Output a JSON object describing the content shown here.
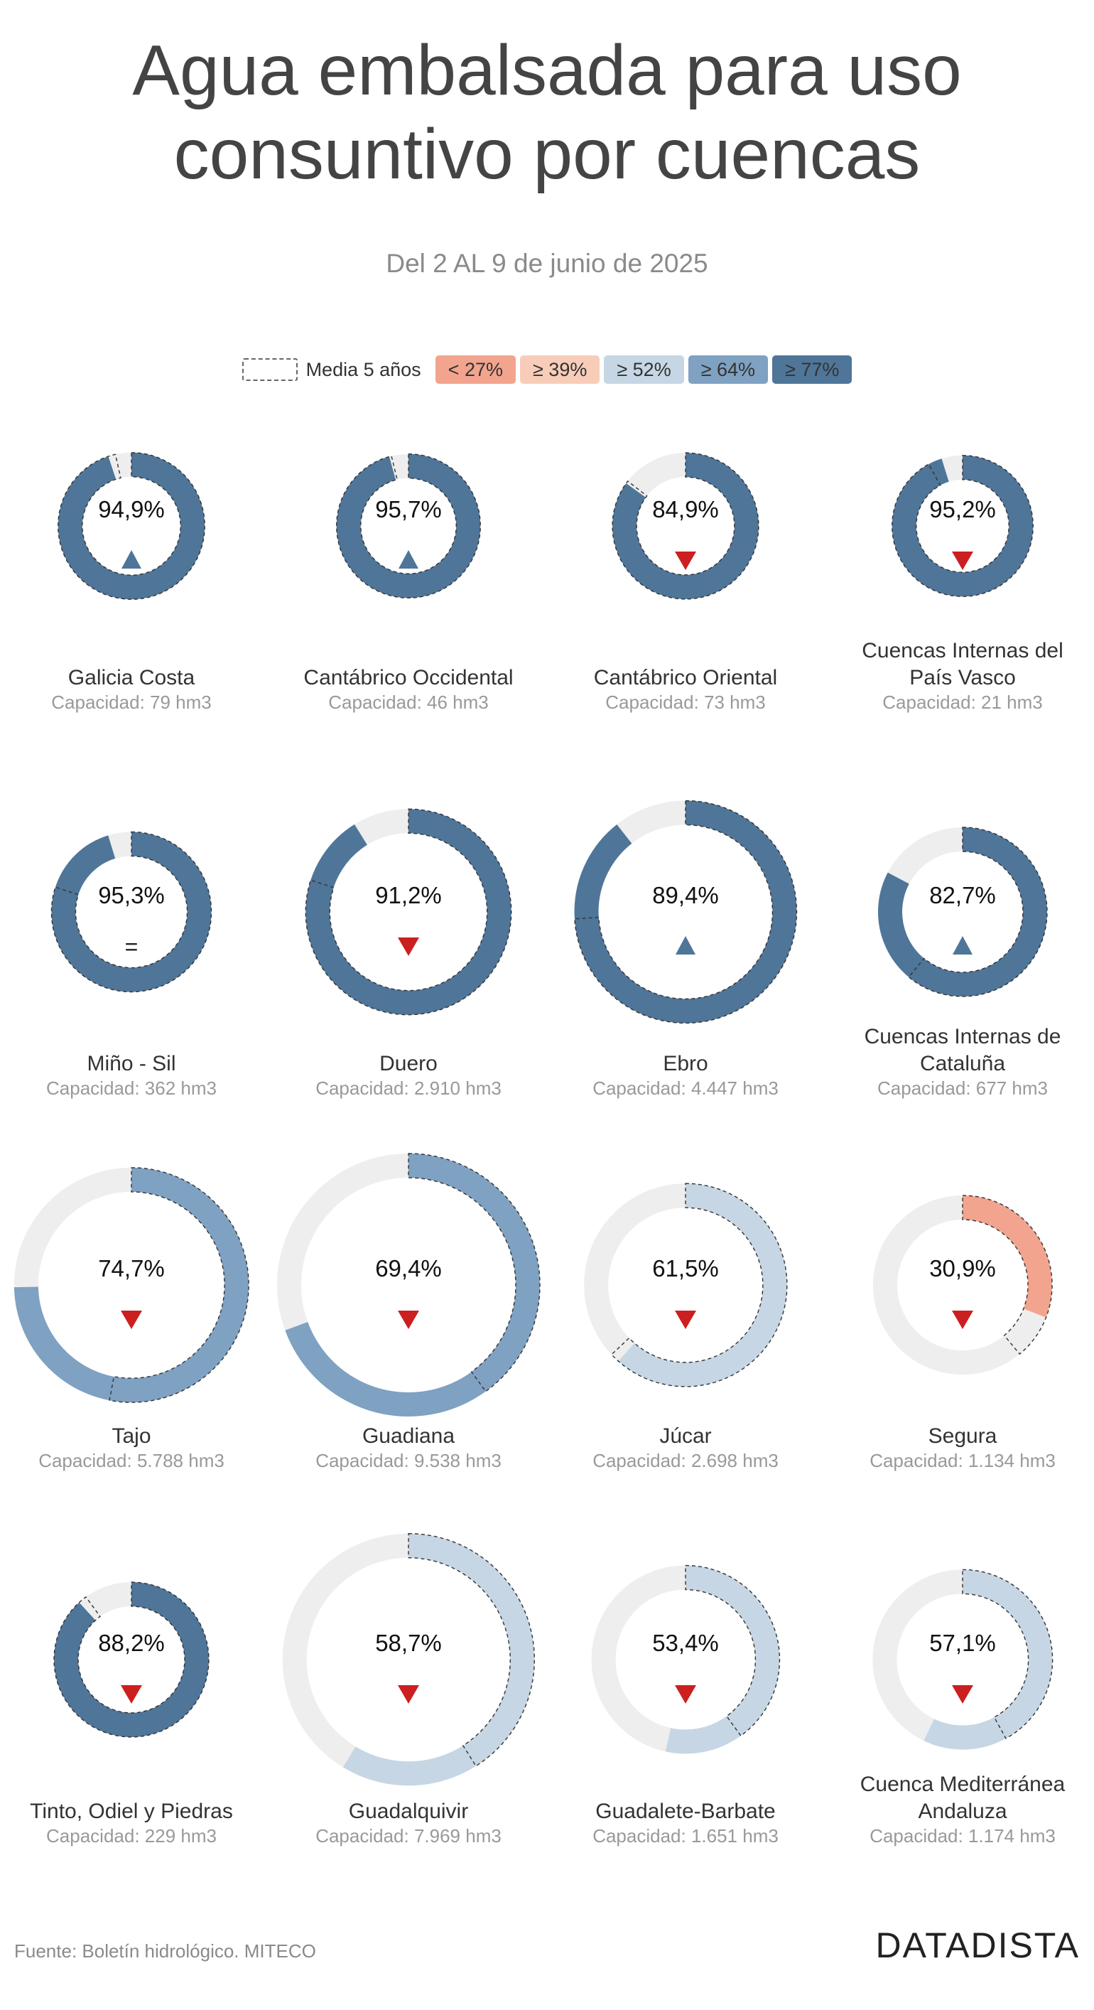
{
  "header": {
    "title_line1": "Agua embalsada para uso",
    "title_line2": "consuntivo por cuencas",
    "subtitle": "Del 2 AL 9 de junio de 2025"
  },
  "legend": {
    "media_label": "Media 5 años",
    "items": [
      {
        "label": "< 27%",
        "color": "#f2a48f"
      },
      {
        "label": "≥ 39%",
        "color": "#f7cdb9"
      },
      {
        "label": "≥ 52%",
        "color": "#c6d6e4"
      },
      {
        "label": "≥ 64%",
        "color": "#7fa1c2"
      },
      {
        "label": "≥ 77%",
        "color": "#4f7599"
      }
    ]
  },
  "footer": {
    "source": "Fuente: Boletín hidrológico. MITECO",
    "logo": "DATADISTA"
  },
  "colors": {
    "track": "#eeeeee",
    "up_arrow": "#4f7599",
    "down_arrow": "#cc1f1f"
  },
  "chart_data": {
    "type": "donut",
    "title": "Agua embalsada para uso consuntivo por cuencas",
    "subtitle": "Del 2 AL 9 de junio de 2025",
    "value_unit": "%",
    "basins": [
      {
        "name": "Galicia Costa",
        "capacity_label": "Capacidad: 79 hm3",
        "capacity_hm3": 79,
        "value": 94.9,
        "value_label": "94,9%",
        "avg5": 96.5,
        "trend": "up"
      },
      {
        "name": "Cantábrico Occidental",
        "capacity_label": "Capacidad: 46 hm3",
        "capacity_hm3": 46,
        "value": 95.7,
        "value_label": "95,7%",
        "avg5": 96.2,
        "trend": "up"
      },
      {
        "name": "Cantábrico Oriental",
        "capacity_label": "Capacidad: 73 hm3",
        "capacity_hm3": 73,
        "value": 84.9,
        "value_label": "84,9%",
        "avg5": 85.5,
        "trend": "down"
      },
      {
        "name": "Cuencas Internas del País Vasco",
        "capacity_label": "Capacidad: 21 hm3",
        "capacity_hm3": 21,
        "value": 95.2,
        "value_label": "95,2%",
        "avg5": 92.0,
        "trend": "down"
      },
      {
        "name": "Miño - Sil",
        "capacity_label": "Capacidad: 362 hm3",
        "capacity_hm3": 362,
        "value": 95.3,
        "value_label": "95,3%",
        "avg5": 80.0,
        "trend": "equal"
      },
      {
        "name": "Duero",
        "capacity_label": "Capacidad: 2.910 hm3",
        "capacity_hm3": 2910,
        "value": 91.2,
        "value_label": "91,2%",
        "avg5": 80.0,
        "trend": "down"
      },
      {
        "name": "Ebro",
        "capacity_label": "Capacidad: 4.447 hm3",
        "capacity_hm3": 4447,
        "value": 89.4,
        "value_label": "89,4%",
        "avg5": 74.0,
        "trend": "up"
      },
      {
        "name": "Cuencas Internas de Cataluña",
        "capacity_label": "Capacidad: 677 hm3",
        "capacity_hm3": 677,
        "value": 82.7,
        "value_label": "82,7%",
        "avg5": 61.0,
        "trend": "up"
      },
      {
        "name": "Tajo",
        "capacity_label": "Capacidad: 5.788 hm3",
        "capacity_hm3": 5788,
        "value": 74.7,
        "value_label": "74,7%",
        "avg5": 53.0,
        "trend": "down"
      },
      {
        "name": "Guadiana",
        "capacity_label": "Capacidad: 9.538 hm3",
        "capacity_hm3": 9538,
        "value": 69.4,
        "value_label": "69,4%",
        "avg5": 40.0,
        "trend": "down"
      },
      {
        "name": "Júcar",
        "capacity_label": "Capacidad: 2.698 hm3",
        "capacity_hm3": 2698,
        "value": 61.5,
        "value_label": "61,5%",
        "avg5": 63.0,
        "trend": "down"
      },
      {
        "name": "Segura",
        "capacity_label": "Capacidad: 1.134 hm3",
        "capacity_hm3": 1134,
        "value": 30.9,
        "value_label": "30,9%",
        "avg5": 39.0,
        "trend": "down"
      },
      {
        "name": "Tinto, Odiel y Piedras",
        "capacity_label": "Capacidad: 229 hm3",
        "capacity_hm3": 229,
        "value": 88.2,
        "value_label": "88,2%",
        "avg5": 90.0,
        "trend": "down"
      },
      {
        "name": "Guadalquivir",
        "capacity_label": "Capacidad: 7.969 hm3",
        "capacity_hm3": 7969,
        "value": 58.7,
        "value_label": "58,7%",
        "avg5": 41.0,
        "trend": "down"
      },
      {
        "name": "Guadalete-Barbate",
        "capacity_label": "Capacidad: 1.651 hm3",
        "capacity_hm3": 1651,
        "value": 53.4,
        "value_label": "53,4%",
        "avg5": 40.0,
        "trend": "down"
      },
      {
        "name": "Cuenca Mediterránea Andaluza",
        "capacity_label": "Capacidad: 1.174 hm3",
        "capacity_hm3": 1174,
        "value": 57.1,
        "value_label": "57,1%",
        "avg5": 42.0,
        "trend": "down"
      }
    ]
  }
}
